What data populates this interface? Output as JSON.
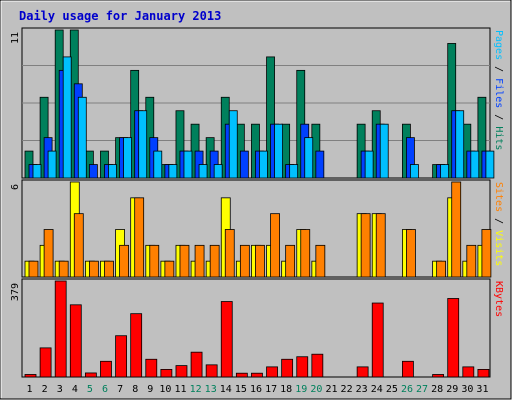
{
  "chart_data": {
    "type": "bar",
    "title": "Daily usage for January 2013",
    "days": [
      "1",
      "2",
      "3",
      "4",
      "5",
      "6",
      "7",
      "8",
      "9",
      "10",
      "11",
      "12",
      "13",
      "14",
      "15",
      "16",
      "17",
      "18",
      "19",
      "20",
      "21",
      "22",
      "23",
      "24",
      "25",
      "26",
      "27",
      "28",
      "29",
      "30",
      "31"
    ],
    "weekend_days": [
      "5",
      "6",
      "12",
      "13",
      "19",
      "20",
      "26",
      "27"
    ],
    "colors": {
      "frame_background": "#C0C0C0",
      "plot_background": "#C0C0C0",
      "title": "#0000CC",
      "weekday_label": "#000000",
      "weekend_label": "#00805C",
      "hits": "#00805C",
      "files": "#0040FF",
      "pages": "#00C0FF",
      "visits": "#FFFF00",
      "sites": "#FF8000",
      "kbytes": "#FF0000",
      "gridline": "#808080"
    },
    "panels": [
      {
        "id": "hits",
        "axis_max_label": "11",
        "ylim": [
          0,
          11
        ],
        "right_label": [
          {
            "text": "Pages",
            "color": "#00C0FF"
          },
          {
            "text": " / ",
            "color": "#000000"
          },
          {
            "text": "Files",
            "color": "#0040FF"
          },
          {
            "text": " / ",
            "color": "#000000"
          },
          {
            "text": "Hits",
            "color": "#00805C"
          }
        ],
        "series": [
          {
            "name": "Hits",
            "color": "#00805C",
            "values": [
              2,
              6,
              11,
              11,
              2,
              2,
              3,
              8,
              6,
              1,
              5,
              4,
              3,
              6,
              4,
              4,
              9,
              4,
              8,
              4,
              0,
              0,
              4,
              5,
              0,
              4,
              0,
              1,
              10,
              4,
              6
            ]
          },
          {
            "name": "Files",
            "color": "#0040FF",
            "values": [
              1,
              3,
              8,
              7,
              1,
              1,
              3,
              5,
              3,
              1,
              2,
              2,
              2,
              4,
              2,
              2,
              4,
              1,
              4,
              2,
              0,
              0,
              2,
              4,
              0,
              3,
              0,
              1,
              5,
              2,
              2
            ]
          },
          {
            "name": "Pages",
            "color": "#00C0FF",
            "values": [
              1,
              2,
              9,
              6,
              0,
              1,
              3,
              5,
              2,
              1,
              2,
              1,
              1,
              5,
              0,
              2,
              4,
              1,
              3,
              0,
              0,
              0,
              2,
              4,
              0,
              1,
              0,
              1,
              5,
              2,
              2
            ]
          }
        ]
      },
      {
        "id": "visits",
        "axis_max_label": "6",
        "ylim": [
          0,
          6
        ],
        "right_label": [
          {
            "text": "Sites",
            "color": "#FF8000"
          },
          {
            "text": " / ",
            "color": "#000000"
          },
          {
            "text": "Visits",
            "color": "#FFFF00"
          }
        ],
        "series": [
          {
            "name": "Visits",
            "color": "#FFFF00",
            "values": [
              1,
              2,
              1,
              6,
              1,
              1,
              3,
              5,
              2,
              1,
              2,
              1,
              1,
              5,
              1,
              2,
              2,
              1,
              3,
              1,
              0,
              0,
              4,
              4,
              0,
              3,
              0,
              1,
              5,
              1,
              2
            ]
          },
          {
            "name": "Sites",
            "color": "#FF8000",
            "values": [
              1,
              3,
              1,
              4,
              1,
              1,
              2,
              5,
              2,
              1,
              2,
              2,
              2,
              3,
              2,
              2,
              4,
              2,
              3,
              2,
              0,
              0,
              4,
              4,
              0,
              3,
              0,
              1,
              6,
              2,
              3
            ]
          }
        ]
      },
      {
        "id": "kbytes",
        "axis_max_label": "379",
        "ylim": [
          0,
          379
        ],
        "right_label": [
          {
            "text": "KBytes",
            "color": "#FF0000"
          }
        ],
        "series": [
          {
            "name": "KBytes",
            "color": "#FF0000",
            "values": [
              10,
              115,
              379,
              285,
              16,
              62,
              163,
              250,
              70,
              30,
              45,
              98,
              48,
              298,
              15,
              15,
              40,
              70,
              80,
              90,
              0,
              0,
              40,
              292,
              0,
              62,
              0,
              10,
              310,
              40,
              30
            ]
          }
        ]
      }
    ]
  }
}
